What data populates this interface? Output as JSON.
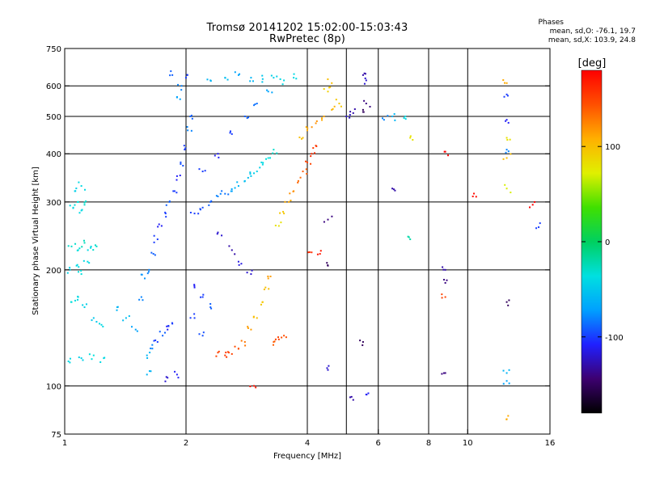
{
  "header": {
    "title_line1": "Tromsø 20141202 15:02:00-15:03:43",
    "title_line2": "RwPretec (8p)"
  },
  "phase_box": {
    "label": "Phases",
    "line_o": "mean, sd,O: -76.1, 19.7",
    "line_x": "mean, sd,X: 103.9, 24.8"
  },
  "chart_data": {
    "type": "scatter",
    "xlabel": "Frequency [MHz]",
    "ylabel": "Stationary phase Virtual Height [km]",
    "xscale": "log",
    "yscale": "log",
    "xlim": [
      1,
      16
    ],
    "ylim": [
      75,
      750
    ],
    "x_ticks": [
      {
        "value": 1,
        "label": "1"
      },
      {
        "value": 2,
        "label": "2"
      },
      {
        "value": 4,
        "label": "4"
      },
      {
        "value": 6,
        "label": "6"
      },
      {
        "value": 8,
        "label": "8"
      },
      {
        "value": 10,
        "label": "10"
      },
      {
        "value": 16,
        "label": "16"
      }
    ],
    "x_grid": [
      2,
      4,
      5,
      6,
      8,
      10
    ],
    "y_ticks": [
      {
        "value": 75,
        "label": "75"
      },
      {
        "value": 100,
        "label": "100"
      },
      {
        "value": 200,
        "label": "200"
      },
      {
        "value": 300,
        "label": "300"
      },
      {
        "value": 400,
        "label": "400"
      },
      {
        "value": 500,
        "label": "500"
      },
      {
        "value": 600,
        "label": "600"
      },
      {
        "value": 750,
        "label": "750"
      }
    ],
    "y_grid": [
      100,
      200,
      300,
      400,
      500,
      600
    ],
    "grid": true,
    "colorbar": {
      "label": "[deg]",
      "range": [
        -180,
        180
      ],
      "ticks": [
        {
          "value": 100,
          "label": "100"
        },
        {
          "value": 0,
          "label": "0"
        },
        {
          "value": -100,
          "label": "-100"
        }
      ],
      "colormap": [
        "#000000",
        "#3d0070",
        "#2020ff",
        "#00a0ff",
        "#00e0e0",
        "#00d060",
        "#40e000",
        "#e0f000",
        "#ffb000",
        "#ff5000",
        "#ff0000"
      ]
    },
    "series": [
      {
        "description": "O-mode F-region traces (trace points: [freq MHz, height km, phase deg])",
        "points": [
          [
            1.05,
            290,
            -40
          ],
          [
            1.08,
            300,
            -35
          ],
          [
            1.1,
            285,
            -40
          ],
          [
            1.12,
            295,
            -30
          ],
          [
            1.06,
            320,
            -45
          ],
          [
            1.1,
            330,
            -40
          ],
          [
            1.04,
            230,
            -30
          ],
          [
            1.08,
            225,
            -35
          ],
          [
            1.12,
            235,
            -25
          ],
          [
            1.16,
            228,
            -40
          ],
          [
            1.2,
            230,
            -30
          ],
          [
            1.03,
            200,
            -45
          ],
          [
            1.07,
            205,
            -40
          ],
          [
            1.1,
            195,
            -35
          ],
          [
            1.14,
            210,
            -40
          ],
          [
            1.04,
            165,
            -35
          ],
          [
            1.08,
            170,
            -40
          ],
          [
            1.12,
            160,
            -45
          ],
          [
            1.18,
            150,
            -50
          ],
          [
            1.22,
            145,
            -40
          ],
          [
            1.03,
            115,
            -40
          ],
          [
            1.1,
            118,
            -45
          ],
          [
            1.18,
            120,
            -35
          ],
          [
            1.25,
            118,
            -40
          ],
          [
            1.35,
            160,
            -60
          ],
          [
            1.42,
            150,
            -55
          ],
          [
            1.5,
            140,
            -70
          ],
          [
            1.55,
            170,
            -80
          ],
          [
            1.58,
            190,
            -75
          ],
          [
            1.6,
            120,
            -60
          ],
          [
            1.65,
            125,
            -80
          ],
          [
            1.7,
            130,
            -100
          ],
          [
            1.75,
            135,
            -90
          ],
          [
            1.8,
            140,
            -110
          ],
          [
            1.85,
            145,
            -100
          ],
          [
            1.62,
            200,
            -80
          ],
          [
            1.66,
            220,
            -90
          ],
          [
            1.7,
            240,
            -100
          ],
          [
            1.74,
            260,
            -110
          ],
          [
            1.78,
            280,
            -100
          ],
          [
            1.82,
            300,
            -90
          ],
          [
            1.86,
            320,
            -100
          ],
          [
            1.9,
            350,
            -110
          ],
          [
            1.94,
            380,
            -95
          ],
          [
            1.98,
            420,
            -100
          ],
          [
            2.02,
            460,
            -80
          ],
          [
            2.05,
            500,
            -90
          ],
          [
            1.9,
            560,
            -70
          ],
          [
            1.95,
            600,
            -80
          ],
          [
            2.0,
            630,
            -100
          ],
          [
            1.85,
            640,
            -90
          ],
          [
            2.1,
            280,
            -100
          ],
          [
            2.2,
            290,
            -95
          ],
          [
            2.3,
            300,
            -90
          ],
          [
            2.4,
            310,
            -80
          ],
          [
            2.5,
            315,
            -85
          ],
          [
            2.6,
            320,
            -70
          ],
          [
            2.7,
            330,
            -60
          ],
          [
            2.8,
            340,
            -55
          ],
          [
            2.9,
            350,
            -50
          ],
          [
            3.0,
            360,
            -45
          ],
          [
            3.1,
            375,
            -40
          ],
          [
            3.2,
            390,
            -35
          ],
          [
            3.3,
            410,
            -30
          ],
          [
            2.2,
            360,
            -100
          ],
          [
            2.4,
            400,
            -110
          ],
          [
            2.6,
            450,
            -100
          ],
          [
            2.8,
            500,
            -90
          ],
          [
            3.0,
            540,
            -85
          ],
          [
            3.2,
            580,
            -70
          ],
          [
            2.3,
            620,
            -60
          ],
          [
            2.5,
            630,
            -55
          ],
          [
            2.7,
            640,
            -70
          ],
          [
            2.9,
            630,
            -60
          ],
          [
            3.1,
            625,
            -50
          ],
          [
            3.3,
            630,
            -45
          ],
          [
            3.5,
            620,
            -40
          ],
          [
            3.7,
            630,
            -40
          ],
          [
            2.1,
            180,
            -110
          ],
          [
            2.2,
            170,
            -100
          ],
          [
            2.3,
            160,
            -90
          ],
          [
            2.1,
            150,
            -100
          ],
          [
            2.2,
            135,
            -95
          ],
          [
            2.4,
            250,
            -120
          ],
          [
            2.6,
            225,
            -130
          ],
          [
            2.7,
            210,
            -115
          ],
          [
            2.9,
            195,
            -120
          ]
        ]
      },
      {
        "description": "X-mode traces",
        "points": [
          [
            2.4,
            122,
            150
          ],
          [
            2.5,
            120,
            155
          ],
          [
            2.6,
            121,
            150
          ],
          [
            2.7,
            125,
            145
          ],
          [
            2.8,
            130,
            130
          ],
          [
            2.9,
            140,
            115
          ],
          [
            3.0,
            150,
            100
          ],
          [
            3.1,
            165,
            95
          ],
          [
            3.15,
            180,
            100
          ],
          [
            3.2,
            190,
            115
          ],
          [
            3.3,
            130,
            140
          ],
          [
            3.4,
            132,
            150
          ],
          [
            3.5,
            135,
            145
          ],
          [
            3.4,
            260,
            80
          ],
          [
            3.5,
            280,
            95
          ],
          [
            3.6,
            300,
            110
          ],
          [
            3.7,
            320,
            120
          ],
          [
            3.8,
            340,
            135
          ],
          [
            3.9,
            360,
            140
          ],
          [
            4.0,
            380,
            150
          ],
          [
            4.1,
            400,
            160
          ],
          [
            4.2,
            420,
            155
          ],
          [
            3.9,
            440,
            100
          ],
          [
            4.0,
            460,
            110
          ],
          [
            4.2,
            480,
            120
          ],
          [
            4.4,
            500,
            110
          ],
          [
            4.6,
            520,
            105
          ],
          [
            4.8,
            540,
            95
          ],
          [
            4.5,
            580,
            90
          ],
          [
            4.6,
            610,
            100
          ],
          [
            4.3,
            220,
            170
          ],
          [
            4.1,
            222,
            160
          ],
          [
            2.95,
            100,
            170
          ],
          [
            5.0,
            500,
            -120
          ],
          [
            5.2,
            510,
            -130
          ],
          [
            5.5,
            520,
            -150
          ],
          [
            5.6,
            540,
            -140
          ],
          [
            5.5,
            640,
            -130
          ],
          [
            5.6,
            620,
            -120
          ]
        ]
      },
      {
        "description": "Sparse high-frequency points",
        "points": [
          [
            6.2,
            490,
            -80
          ],
          [
            6.5,
            500,
            -60
          ],
          [
            7.0,
            500,
            -40
          ],
          [
            7.2,
            440,
            80
          ],
          [
            6.5,
            325,
            -130
          ],
          [
            4.5,
            270,
            -140
          ],
          [
            4.5,
            205,
            -150
          ],
          [
            7.2,
            240,
            -20
          ],
          [
            8.8,
            200,
            -130
          ],
          [
            8.8,
            185,
            -140
          ],
          [
            8.8,
            170,
            150
          ],
          [
            8.8,
            108,
            -140
          ],
          [
            8.8,
            405,
            180
          ],
          [
            10.3,
            310,
            175
          ],
          [
            12.5,
            610,
            110
          ],
          [
            12.5,
            570,
            -100
          ],
          [
            12.5,
            490,
            -110
          ],
          [
            12.5,
            440,
            80
          ],
          [
            12.5,
            410,
            -80
          ],
          [
            12.5,
            390,
            100
          ],
          [
            12.5,
            325,
            70
          ],
          [
            12.5,
            165,
            -150
          ],
          [
            12.5,
            108,
            -60
          ],
          [
            12.5,
            103,
            -70
          ],
          [
            12.5,
            82,
            110
          ],
          [
            14.5,
            295,
            180
          ],
          [
            15,
            258,
            -100
          ],
          [
            5.5,
            130,
            -150
          ],
          [
            5.6,
            95,
            -110
          ],
          [
            5.2,
            92,
            -130
          ],
          [
            4.5,
            110,
            -120
          ],
          [
            1.8,
            105,
            -120
          ],
          [
            1.9,
            107,
            -110
          ],
          [
            1.6,
            107,
            -60
          ]
        ]
      }
    ]
  }
}
